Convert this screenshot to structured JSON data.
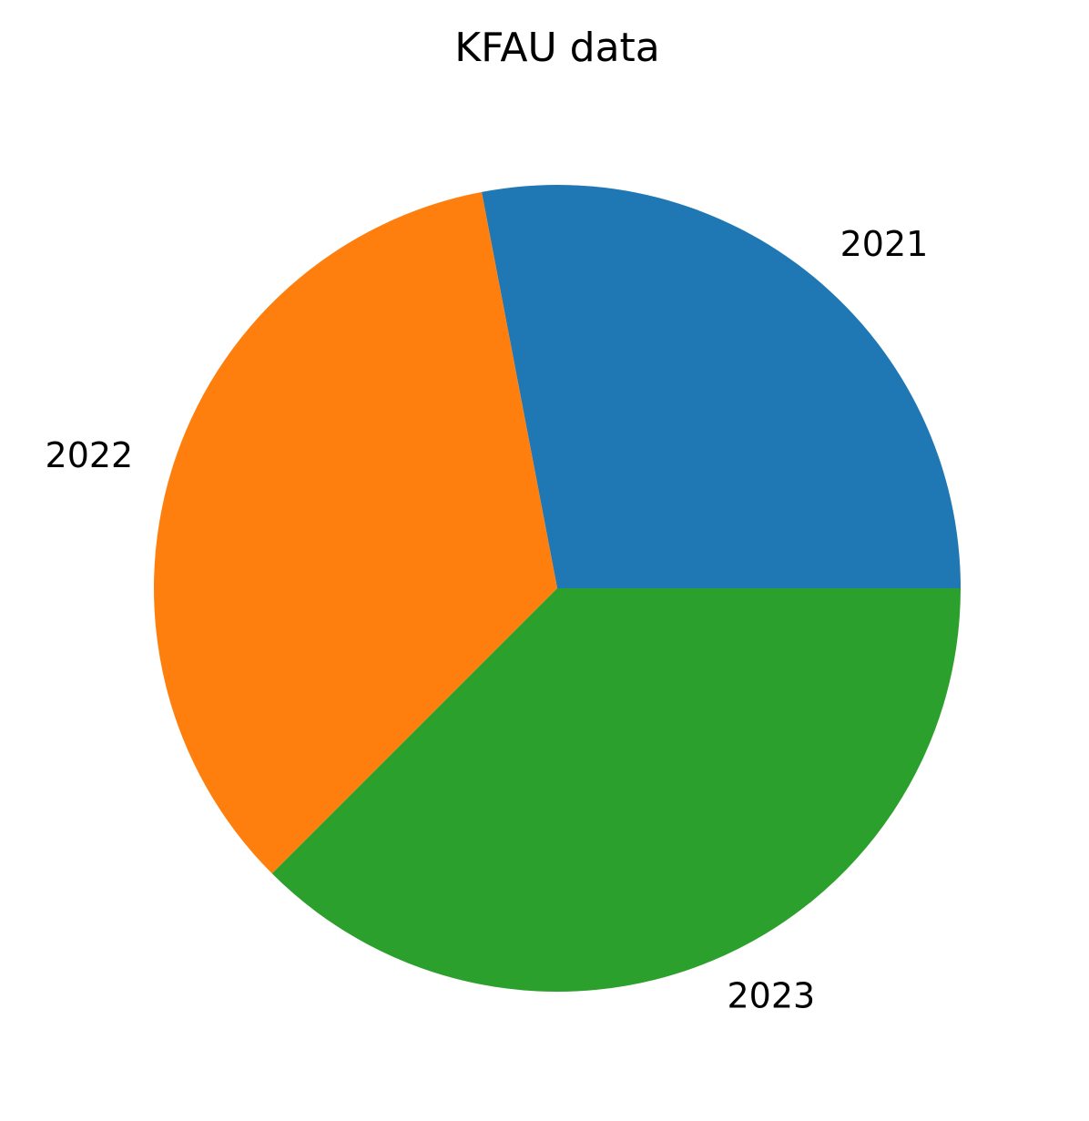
{
  "chart_data": {
    "type": "pie",
    "title": "KFAU data",
    "labels": [
      "2021",
      "2022",
      "2023"
    ],
    "values": [
      28.0,
      34.5,
      37.5
    ],
    "colors": [
      "#1f77b4",
      "#ff7f0e",
      "#2ca02c"
    ],
    "start_angle_deg": 0,
    "direction": "counterclockwise"
  }
}
